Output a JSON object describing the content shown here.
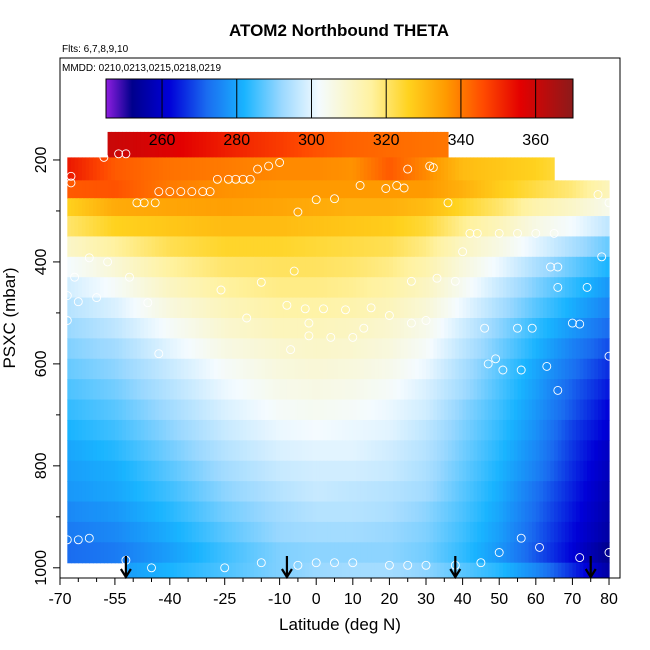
{
  "chart_data": {
    "type": "heatmap",
    "title": "ATOM2 Northbound THETA",
    "subtitle_flights": "Flts: 6,7,8,9,10",
    "subtitle_dates": "MMDD: 0210,0213,0215,0218,0219",
    "xlabel": "Latitude (deg N)",
    "ylabel": "PSXC (mbar)",
    "xlim": [
      -70,
      83
    ],
    "ylim": [
      1020,
      0
    ],
    "y_inverted": true,
    "x_ticks": [
      "-70",
      "-55",
      "-40",
      "-25",
      "-10",
      "0",
      "10",
      "20",
      "30",
      "40",
      "50",
      "60",
      "70",
      "80"
    ],
    "x_tick_values": [
      -70,
      -55,
      -40,
      -25,
      -10,
      0,
      10,
      20,
      30,
      40,
      50,
      60,
      70,
      80
    ],
    "x_minor_ticks": [
      -65,
      -60,
      -50,
      -45,
      -35,
      -30,
      -20,
      -15,
      -5,
      5,
      15,
      25,
      35,
      45,
      55,
      65,
      75
    ],
    "y_ticks": [
      "200",
      "400",
      "600",
      "800",
      "1000"
    ],
    "y_tick_values": [
      200,
      400,
      600,
      800,
      1000
    ],
    "y_minor_ticks": [
      300,
      500,
      700,
      900
    ],
    "colorbar": {
      "ticks": [
        "260",
        "280",
        "300",
        "320",
        "340",
        "360"
      ],
      "tick_values": [
        260,
        280,
        300,
        320,
        340,
        360
      ],
      "range": [
        245,
        370
      ],
      "colors": [
        "#8f1ee0",
        "#00008c",
        "#0000d8",
        "#1a6cf0",
        "#19b4ff",
        "#9ad8ff",
        "#f4fbff",
        "#fff2a0",
        "#ffd21e",
        "#ff9a00",
        "#ff4a00",
        "#e30000",
        "#8c1a1a"
      ],
      "color_stops": [
        245,
        252,
        262,
        272,
        282,
        292,
        302,
        316,
        326,
        336,
        346,
        356,
        370
      ]
    },
    "grid": false,
    "pressure_levels": [
      170,
      220,
      260,
      290,
      330,
      370,
      410,
      450,
      490,
      530,
      570,
      610,
      650,
      690,
      730,
      770,
      810,
      850,
      890,
      930,
      970,
      1010
    ],
    "level_lat_ranges": [
      [
        -57,
        36
      ],
      [
        -68,
        65
      ],
      [
        -68,
        80
      ],
      [
        -68,
        80
      ],
      [
        -68,
        80
      ],
      [
        -68,
        80
      ],
      [
        -68,
        80
      ],
      [
        -68,
        80
      ],
      [
        -68,
        80
      ],
      [
        -68,
        80
      ],
      [
        -68,
        80
      ],
      [
        -68,
        80
      ],
      [
        -68,
        80
      ],
      [
        -68,
        80
      ],
      [
        -68,
        80
      ],
      [
        -68,
        80
      ],
      [
        -68,
        80
      ],
      [
        -68,
        80
      ],
      [
        -68,
        80
      ],
      [
        -68,
        80
      ],
      [
        -68,
        80
      ],
      [
        -52,
        80
      ]
    ],
    "theta_profile": {
      "lat_nodes": [
        -68,
        -55,
        -40,
        -25,
        -10,
        0,
        10,
        20,
        30,
        40,
        50,
        60,
        70,
        80
      ],
      "rows": [
        [
          362,
          360,
          357,
          352,
          348,
          345,
          343,
          342,
          341,
          340,
          340,
          340,
          340,
          340
        ],
        [
          353,
          344,
          341,
          340,
          338,
          338,
          337,
          344,
          338,
          330,
          328,
          326,
          322,
          318
        ],
        [
          344,
          345,
          340,
          337,
          336,
          336,
          336,
          336,
          336,
          332,
          327,
          323,
          319,
          312
        ],
        [
          326,
          333,
          334,
          335,
          334,
          333,
          332,
          332,
          330,
          325,
          320,
          314,
          310,
          305
        ],
        [
          320,
          326,
          328,
          330,
          330,
          329,
          328,
          327,
          324,
          317,
          312,
          306,
          302,
          296
        ],
        [
          310,
          316,
          322,
          325,
          325,
          324,
          323,
          322,
          318,
          311,
          306,
          300,
          294,
          288
        ],
        [
          302,
          308,
          316,
          320,
          321,
          321,
          320,
          318,
          314,
          307,
          301,
          294,
          288,
          282
        ],
        [
          298,
          303,
          311,
          316,
          318,
          318,
          317,
          315,
          311,
          304,
          297,
          290,
          284,
          278
        ],
        [
          295,
          299,
          307,
          312,
          315,
          315,
          314,
          312,
          308,
          301,
          294,
          287,
          281,
          275
        ],
        [
          292,
          296,
          303,
          309,
          312,
          312,
          311,
          309,
          305,
          298,
          291,
          284,
          278,
          272
        ],
        [
          290,
          293,
          300,
          306,
          309,
          310,
          309,
          307,
          303,
          296,
          289,
          282,
          275,
          269
        ],
        [
          288,
          291,
          297,
          303,
          307,
          308,
          307,
          305,
          301,
          294,
          287,
          280,
          273,
          266
        ],
        [
          286,
          289,
          295,
          301,
          305,
          306,
          305,
          303,
          299,
          293,
          286,
          279,
          271,
          264
        ],
        [
          284,
          287,
          293,
          299,
          303,
          304,
          303,
          301,
          298,
          291,
          285,
          278,
          270,
          262
        ],
        [
          282,
          285,
          291,
          297,
          301,
          302,
          301,
          300,
          296,
          290,
          284,
          277,
          268,
          261
        ],
        [
          280,
          283,
          289,
          295,
          299,
          300,
          300,
          298,
          295,
          289,
          283,
          276,
          267,
          259
        ],
        [
          279,
          281,
          287,
          293,
          297,
          298,
          298,
          297,
          294,
          288,
          282,
          275,
          266,
          258
        ],
        [
          278,
          280,
          285,
          291,
          295,
          297,
          296,
          295,
          293,
          287,
          281,
          273,
          265,
          257
        ],
        [
          276,
          278,
          283,
          289,
          293,
          295,
          295,
          294,
          291,
          286,
          280,
          272,
          264,
          256
        ],
        [
          274,
          276,
          281,
          287,
          292,
          293,
          293,
          292,
          290,
          285,
          279,
          271,
          263,
          255
        ],
        [
          272,
          274,
          279,
          285,
          290,
          291,
          291,
          291,
          289,
          284,
          278,
          270,
          262,
          252
        ],
        [
          272,
          278,
          282,
          286,
          290,
          292,
          293,
          293,
          291,
          287,
          283,
          276,
          266,
          255
        ]
      ]
    },
    "observations": [
      {
        "lat": -58,
        "p": 195
      },
      {
        "lat": -54,
        "p": 188
      },
      {
        "lat": -52,
        "p": 188
      },
      {
        "lat": -67,
        "p": 232
      },
      {
        "lat": -67,
        "p": 245
      },
      {
        "lat": -13,
        "p": 212
      },
      {
        "lat": -16,
        "p": 218
      },
      {
        "lat": -10,
        "p": 205
      },
      {
        "lat": 19,
        "p": 256
      },
      {
        "lat": 22,
        "p": 250
      },
      {
        "lat": 32,
        "p": 215
      },
      {
        "lat": 24,
        "p": 255
      },
      {
        "lat": -22,
        "p": 238
      },
      {
        "lat": -24,
        "p": 238
      },
      {
        "lat": -27,
        "p": 238
      },
      {
        "lat": -20,
        "p": 238
      },
      {
        "lat": -18,
        "p": 238
      },
      {
        "lat": -40,
        "p": 262
      },
      {
        "lat": -37,
        "p": 262
      },
      {
        "lat": -34,
        "p": 262
      },
      {
        "lat": -31,
        "p": 262
      },
      {
        "lat": -29,
        "p": 262
      },
      {
        "lat": -43,
        "p": 262
      },
      {
        "lat": -49,
        "p": 284
      },
      {
        "lat": -47,
        "p": 284
      },
      {
        "lat": -44,
        "p": 284
      },
      {
        "lat": 0,
        "p": 278
      },
      {
        "lat": 5,
        "p": 276
      },
      {
        "lat": 12,
        "p": 250
      },
      {
        "lat": 25,
        "p": 218
      },
      {
        "lat": 31,
        "p": 212
      },
      {
        "lat": -5,
        "p": 302
      },
      {
        "lat": 36,
        "p": 284
      },
      {
        "lat": 42,
        "p": 344
      },
      {
        "lat": 44,
        "p": 344
      },
      {
        "lat": 50,
        "p": 344
      },
      {
        "lat": 55,
        "p": 344
      },
      {
        "lat": 60,
        "p": 344
      },
      {
        "lat": 65,
        "p": 344
      },
      {
        "lat": 80,
        "p": 284
      },
      {
        "lat": 77,
        "p": 268
      },
      {
        "lat": -57,
        "p": 400
      },
      {
        "lat": -62,
        "p": 392
      },
      {
        "lat": -66,
        "p": 430
      },
      {
        "lat": -68,
        "p": 466
      },
      {
        "lat": -65,
        "p": 478
      },
      {
        "lat": -60,
        "p": 470
      },
      {
        "lat": -51,
        "p": 430
      },
      {
        "lat": -46,
        "p": 480
      },
      {
        "lat": -26,
        "p": 455
      },
      {
        "lat": -6,
        "p": 418
      },
      {
        "lat": -8,
        "p": 485
      },
      {
        "lat": -3,
        "p": 492
      },
      {
        "lat": 2,
        "p": 492
      },
      {
        "lat": 8,
        "p": 494
      },
      {
        "lat": 15,
        "p": 490
      },
      {
        "lat": 20,
        "p": 505
      },
      {
        "lat": 26,
        "p": 438
      },
      {
        "lat": 33,
        "p": 432
      },
      {
        "lat": 38,
        "p": 438
      },
      {
        "lat": 40,
        "p": 380
      },
      {
        "lat": 64,
        "p": 410
      },
      {
        "lat": 66,
        "p": 410
      },
      {
        "lat": 78,
        "p": 390
      },
      {
        "lat": 74,
        "p": 450
      },
      {
        "lat": 66,
        "p": 450
      },
      {
        "lat": -68,
        "p": 515
      },
      {
        "lat": -43,
        "p": 580
      },
      {
        "lat": -19,
        "p": 510
      },
      {
        "lat": -15,
        "p": 440
      },
      {
        "lat": -2,
        "p": 520
      },
      {
        "lat": 4,
        "p": 548
      },
      {
        "lat": 10,
        "p": 548
      },
      {
        "lat": 13,
        "p": 530
      },
      {
        "lat": -2,
        "p": 545
      },
      {
        "lat": -7,
        "p": 572
      },
      {
        "lat": 26,
        "p": 520
      },
      {
        "lat": 30,
        "p": 515
      },
      {
        "lat": 46,
        "p": 530
      },
      {
        "lat": 55,
        "p": 530
      },
      {
        "lat": 59,
        "p": 530
      },
      {
        "lat": 72,
        "p": 522
      },
      {
        "lat": 70,
        "p": 520
      },
      {
        "lat": 49,
        "p": 590
      },
      {
        "lat": 47,
        "p": 600
      },
      {
        "lat": 51,
        "p": 612
      },
      {
        "lat": 56,
        "p": 612
      },
      {
        "lat": 63,
        "p": 605
      },
      {
        "lat": 66,
        "p": 652
      },
      {
        "lat": 80,
        "p": 585
      },
      {
        "lat": -68,
        "p": 945
      },
      {
        "lat": -65,
        "p": 945
      },
      {
        "lat": -62,
        "p": 942
      },
      {
        "lat": -52,
        "p": 985
      },
      {
        "lat": -45,
        "p": 1000
      },
      {
        "lat": -25,
        "p": 1000
      },
      {
        "lat": -15,
        "p": 990
      },
      {
        "lat": -5,
        "p": 995
      },
      {
        "lat": 0,
        "p": 990
      },
      {
        "lat": 5,
        "p": 990
      },
      {
        "lat": 10,
        "p": 990
      },
      {
        "lat": 20,
        "p": 995
      },
      {
        "lat": 25,
        "p": 995
      },
      {
        "lat": 30,
        "p": 995
      },
      {
        "lat": 38,
        "p": 995
      },
      {
        "lat": 45,
        "p": 990
      },
      {
        "lat": 50,
        "p": 970
      },
      {
        "lat": 56,
        "p": 942
      },
      {
        "lat": 61,
        "p": 960
      },
      {
        "lat": 72,
        "p": 980
      },
      {
        "lat": 80,
        "p": 970
      }
    ],
    "arrows_lat": [
      -52,
      -8,
      38,
      75
    ]
  }
}
